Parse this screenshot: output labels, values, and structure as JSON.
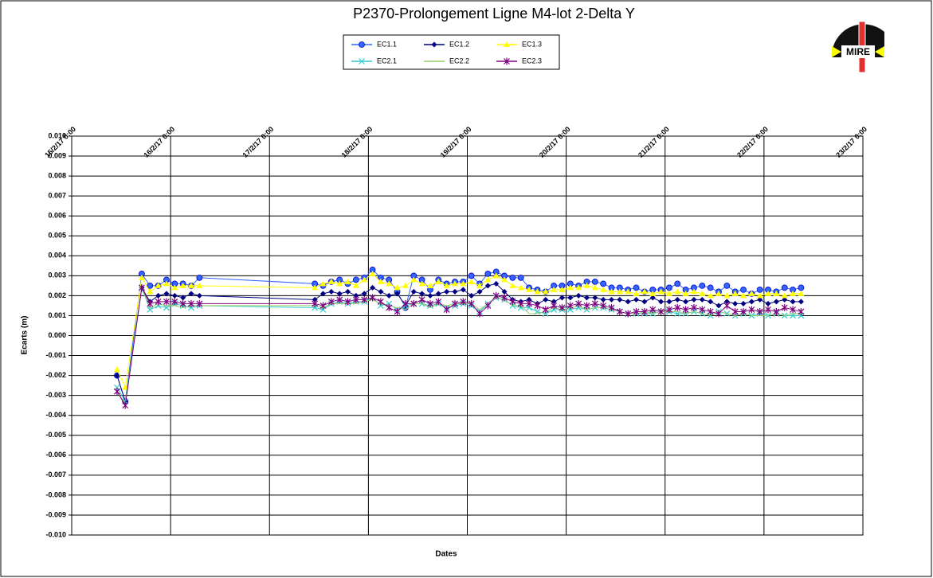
{
  "chart_data": {
    "type": "line",
    "title": "P2370-Prolongement  Ligne  M4-lot 2-Delta Y",
    "x_label": "Dates",
    "y_label": "Ecarts (m)",
    "logo_text": "MIRE",
    "x": [
      "15/2/17 11:00",
      "15/2/17 13:00",
      "15/2/17 17:00",
      "15/2/17 19:00",
      "15/2/17 21:00",
      "15/2/17 23:00",
      "16/2/17 1:00",
      "16/2/17 3:00",
      "16/2/17 5:00",
      "16/2/17 7:00",
      "17/2/17 11:00",
      "17/2/17 13:00",
      "17/2/17 15:00",
      "17/2/17 17:00",
      "17/2/17 19:00",
      "17/2/17 21:00",
      "17/2/17 23:00",
      "18/2/17 1:00",
      "18/2/17 3:00",
      "18/2/17 5:00",
      "18/2/17 7:00",
      "18/2/17 9:00",
      "18/2/17 11:00",
      "18/2/17 13:00",
      "18/2/17 15:00",
      "18/2/17 17:00",
      "18/2/17 19:00",
      "18/2/17 21:00",
      "18/2/17 23:00",
      "19/2/17 1:00",
      "19/2/17 3:00",
      "19/2/17 5:00",
      "19/2/17 7:00",
      "19/2/17 9:00",
      "19/2/17 11:00",
      "19/2/17 13:00",
      "19/2/17 15:00",
      "19/2/17 17:00",
      "19/2/17 19:00",
      "19/2/17 21:00",
      "19/2/17 23:00",
      "20/2/17 1:00",
      "20/2/17 3:00",
      "20/2/17 5:00",
      "20/2/17 7:00",
      "20/2/17 9:00",
      "20/2/17 11:00",
      "20/2/17 13:00",
      "20/2/17 15:00",
      "20/2/17 17:00",
      "20/2/17 19:00",
      "20/2/17 21:00",
      "20/2/17 23:00",
      "21/2/17 1:00",
      "21/2/17 3:00",
      "21/2/17 5:00",
      "21/2/17 7:00",
      "21/2/17 9:00",
      "21/2/17 11:00",
      "21/2/17 13:00",
      "21/2/17 15:00",
      "21/2/17 17:00",
      "21/2/17 19:00",
      "21/2/17 21:00",
      "21/2/17 23:00",
      "22/2/17 1:00",
      "22/2/17 3:00",
      "22/2/17 5:00",
      "22/2/17 7:00",
      "22/2/17 9:00"
    ],
    "xlim": [
      "15/2/17 0:00",
      "23/2/17 0:00"
    ],
    "xticks": [
      "15/2/17 0:00",
      "16/2/17 0:00",
      "17/2/17 0:00",
      "18/2/17 0:00",
      "19/2/17 0:00",
      "20/2/17 0:00",
      "21/2/17 0:00",
      "22/2/17 0:00",
      "23/2/17 0:00"
    ],
    "ylim": [
      -0.01,
      0.01
    ],
    "yticks": [
      {
        "value": -0.01,
        "label": "-0.010"
      },
      {
        "value": -0.009,
        "label": "-0.009"
      },
      {
        "value": -0.008,
        "label": "-0.008"
      },
      {
        "value": -0.007,
        "label": "-0.007"
      },
      {
        "value": -0.006,
        "label": "-0.006"
      },
      {
        "value": -0.005,
        "label": "-0.005"
      },
      {
        "value": -0.004,
        "label": "-0.004"
      },
      {
        "value": -0.003,
        "label": "-0.003"
      },
      {
        "value": -0.002,
        "label": "-0.002"
      },
      {
        "value": -0.001,
        "label": "-0.001"
      },
      {
        "value": 0,
        "label": "0.000"
      },
      {
        "value": 0.001,
        "label": "0.001"
      },
      {
        "value": 0.002,
        "label": "0.002"
      },
      {
        "value": 0.003,
        "label": "0.003"
      },
      {
        "value": 0.004,
        "label": "0.004"
      },
      {
        "value": 0.005,
        "label": "0.005"
      },
      {
        "value": 0.006,
        "label": "0.006"
      },
      {
        "value": 0.007,
        "label": "0.007"
      },
      {
        "value": 0.008,
        "label": "0.008"
      },
      {
        "value": 0.009,
        "label": "0.009"
      },
      {
        "value": 0.01,
        "label": "0.010"
      }
    ],
    "grid": true,
    "series": [
      {
        "name": "EC1.1",
        "color": "#3366ff",
        "marker": "circle",
        "values": [
          -0.002,
          -0.0033,
          0.0031,
          0.0025,
          0.0025,
          0.0028,
          0.0026,
          0.0026,
          0.0025,
          0.0029,
          0.0026,
          0.0025,
          0.0027,
          0.0028,
          0.0026,
          0.0028,
          0.0029,
          0.0033,
          0.0029,
          0.0028,
          0.0022,
          0.0014,
          0.003,
          0.0028,
          0.0023,
          0.0028,
          0.0026,
          0.0027,
          0.0027,
          0.003,
          0.0026,
          0.0031,
          0.0032,
          0.003,
          0.0029,
          0.0029,
          0.0024,
          0.0023,
          0.0022,
          0.0025,
          0.0025,
          0.0026,
          0.0025,
          0.0027,
          0.0027,
          0.0026,
          0.0024,
          0.0024,
          0.0023,
          0.0024,
          0.0022,
          0.0023,
          0.0023,
          0.0024,
          0.0026,
          0.0023,
          0.0024,
          0.0025,
          0.0024,
          0.0022,
          0.0025,
          0.0022,
          0.0023,
          0.0021,
          0.0023,
          0.0023,
          0.0022,
          0.0024,
          0.0023,
          0.0024
        ]
      },
      {
        "name": "EC1.2",
        "color": "#000080",
        "marker": "diamond",
        "values": [
          -0.002,
          -0.0033,
          0.0024,
          0.0017,
          0.002,
          0.0021,
          0.002,
          0.0019,
          0.0021,
          0.002,
          0.0018,
          0.0021,
          0.0022,
          0.0021,
          0.0022,
          0.002,
          0.0021,
          0.0024,
          0.0022,
          0.002,
          0.0021,
          0.0015,
          0.0022,
          0.0021,
          0.002,
          0.0021,
          0.0022,
          0.0022,
          0.0023,
          0.002,
          0.0022,
          0.0025,
          0.0026,
          0.0022,
          0.0018,
          0.0017,
          0.0018,
          0.0016,
          0.0018,
          0.0017,
          0.0019,
          0.0019,
          0.002,
          0.0019,
          0.0019,
          0.0018,
          0.0018,
          0.0018,
          0.0017,
          0.0018,
          0.0017,
          0.0019,
          0.0017,
          0.0017,
          0.0018,
          0.0017,
          0.0018,
          0.0018,
          0.0017,
          0.0015,
          0.0017,
          0.0016,
          0.0016,
          0.0017,
          0.0018,
          0.0016,
          0.0017,
          0.0018,
          0.0017,
          0.0017
        ]
      },
      {
        "name": "EC1.3",
        "color": "#ffff00",
        "marker": "triangle",
        "values": [
          -0.0017,
          -0.0026,
          0.0029,
          0.0022,
          0.0025,
          0.0026,
          0.0024,
          0.0025,
          0.0025,
          0.0025,
          0.0024,
          0.0026,
          0.0027,
          0.0026,
          0.0027,
          0.0025,
          0.0028,
          0.0031,
          0.0027,
          0.0026,
          0.0024,
          0.0025,
          0.0028,
          0.0026,
          0.0025,
          0.0027,
          0.0025,
          0.0026,
          0.0026,
          0.0027,
          0.0025,
          0.0028,
          0.003,
          0.0028,
          0.0025,
          0.0024,
          0.0023,
          0.0022,
          0.0022,
          0.0023,
          0.0023,
          0.0024,
          0.0024,
          0.0025,
          0.0024,
          0.0023,
          0.0022,
          0.0022,
          0.0022,
          0.0021,
          0.0022,
          0.0021,
          0.0022,
          0.0021,
          0.0022,
          0.0021,
          0.0022,
          0.0021,
          0.002,
          0.0021,
          0.002,
          0.0021,
          0.002,
          0.0021,
          0.002,
          0.0021,
          0.0021,
          0.002,
          0.0021,
          0.0021
        ]
      },
      {
        "name": "EC2.1",
        "color": "#33cccc",
        "marker": "x",
        "values": [
          -0.0026,
          -0.0033,
          0.0024,
          0.0013,
          0.0015,
          0.0014,
          0.0016,
          0.0015,
          0.0014,
          0.0015,
          0.0014,
          0.0013,
          0.0016,
          0.0017,
          0.0016,
          0.0017,
          0.0017,
          0.0019,
          0.0015,
          0.0016,
          0.0013,
          0.0015,
          0.0016,
          0.0016,
          0.0015,
          0.0016,
          0.0014,
          0.0015,
          0.0016,
          0.0015,
          0.0012,
          0.0016,
          0.0019,
          0.0018,
          0.0015,
          0.0014,
          0.0014,
          0.0012,
          0.0011,
          0.0013,
          0.0013,
          0.0013,
          0.0014,
          0.0013,
          0.0014,
          0.0014,
          0.0013,
          0.0012,
          0.0011,
          0.0011,
          0.0011,
          0.0011,
          0.0012,
          0.0012,
          0.0011,
          0.0011,
          0.0012,
          0.0011,
          0.001,
          0.0012,
          0.0011,
          0.001,
          0.0011,
          0.001,
          0.0011,
          0.001,
          0.0011,
          0.001,
          0.001,
          0.001
        ]
      },
      {
        "name": "EC2.2",
        "color": "#99cc66",
        "marker": "none",
        "values": [
          -0.0028,
          -0.0034,
          0.0024,
          0.0014,
          0.0016,
          0.0015,
          0.0015,
          0.0014,
          0.0015,
          0.0015,
          0.0015,
          0.0014,
          0.0016,
          0.0016,
          0.0016,
          0.0016,
          0.0017,
          0.0018,
          0.0016,
          0.0015,
          0.0014,
          0.0013,
          0.0016,
          0.0016,
          0.0014,
          0.0016,
          0.0015,
          0.0016,
          0.0016,
          0.0016,
          0.0013,
          0.0016,
          0.0019,
          0.0018,
          0.0015,
          0.0015,
          0.0011,
          0.0011,
          0.0012,
          0.0014,
          0.0013,
          0.0014,
          0.0015,
          0.0013,
          0.0014,
          0.0014,
          0.0013,
          0.0012,
          0.0011,
          0.0011,
          0.0012,
          0.0011,
          0.0012,
          0.0012,
          0.0012,
          0.0011,
          0.0012,
          0.0011,
          0.001,
          0.0012,
          0.0011,
          0.001,
          0.0011,
          0.001,
          0.001,
          0.001,
          0.0011,
          0.001,
          0.0011,
          0.0011
        ]
      },
      {
        "name": "EC2.3",
        "color": "#800080",
        "marker": "star",
        "values": [
          -0.0028,
          -0.0035,
          0.0024,
          0.0016,
          0.0017,
          0.0017,
          0.0017,
          0.0016,
          0.0016,
          0.0016,
          0.0016,
          0.0015,
          0.0017,
          0.0018,
          0.0017,
          0.0018,
          0.0018,
          0.0019,
          0.0017,
          0.0014,
          0.0012,
          0.0016,
          0.0016,
          0.0018,
          0.0016,
          0.0017,
          0.0013,
          0.0016,
          0.0017,
          0.0016,
          0.0011,
          0.0015,
          0.002,
          0.0019,
          0.0017,
          0.0016,
          0.0016,
          0.0015,
          0.0013,
          0.0015,
          0.0014,
          0.0015,
          0.0016,
          0.0015,
          0.0016,
          0.0015,
          0.0014,
          0.0012,
          0.0011,
          0.0012,
          0.0012,
          0.0013,
          0.0012,
          0.0013,
          0.0014,
          0.0013,
          0.0014,
          0.0013,
          0.0012,
          0.0011,
          0.0015,
          0.0012,
          0.0012,
          0.0013,
          0.0012,
          0.0013,
          0.0012,
          0.0014,
          0.0013,
          0.0012
        ]
      }
    ]
  }
}
